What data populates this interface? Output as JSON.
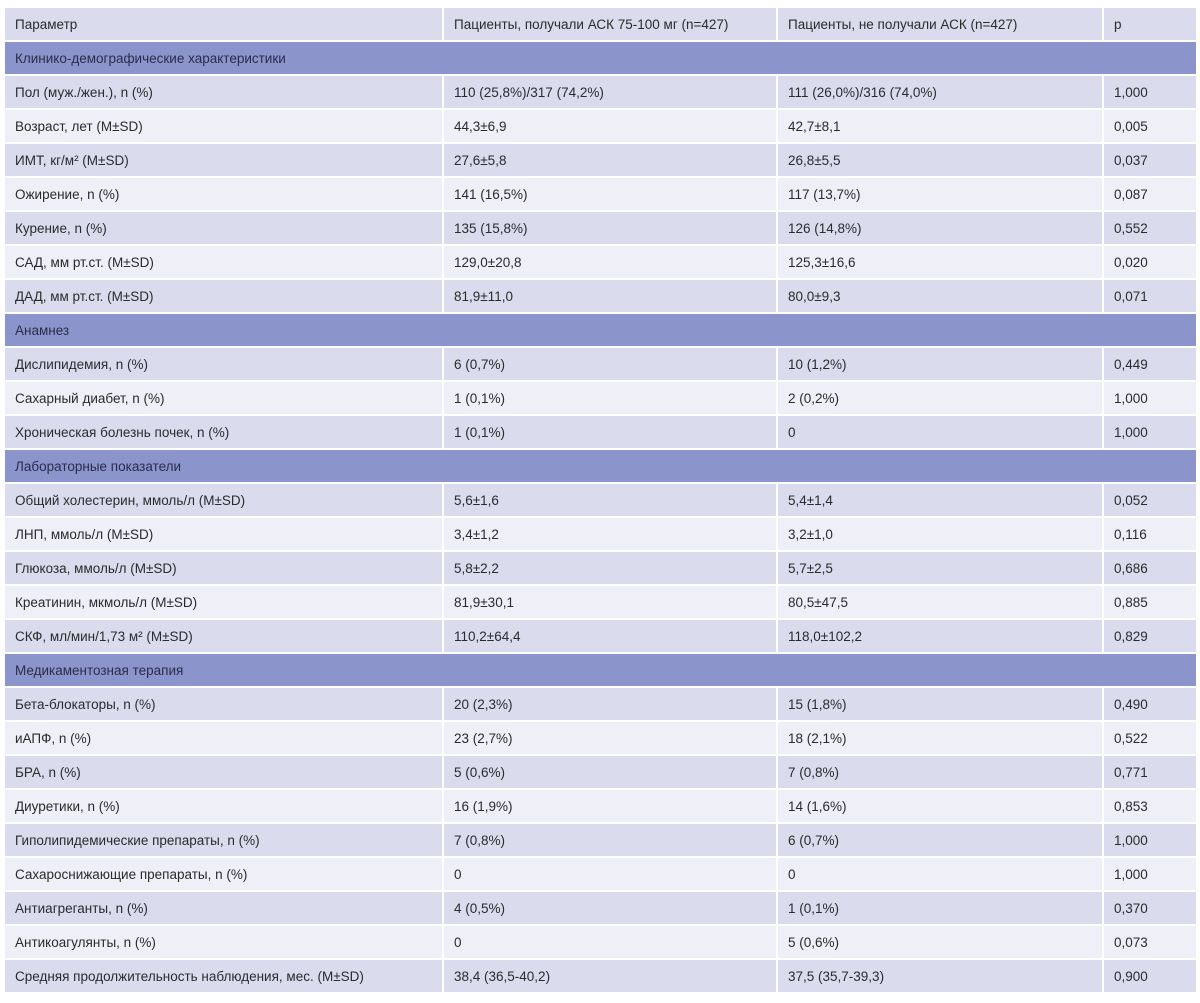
{
  "table": {
    "columns": [
      "Параметр",
      "Пациенты, получали АСК 75-100 мг (n=427)",
      "Пациенты, не получали АСК (n=427)",
      "p"
    ],
    "rows": [
      {
        "type": "section",
        "label": "Клинико-демографические характеристики"
      },
      {
        "type": "data",
        "cells": [
          "Пол (муж./жен.), n (%)",
          "110 (25,8%)/317 (74,2%)",
          "111 (26,0%)/316 (74,0%)",
          "1,000"
        ]
      },
      {
        "type": "data",
        "cells": [
          "Возраст, лет (M±SD)",
          "44,3±6,9",
          "42,7±8,1",
          "0,005"
        ]
      },
      {
        "type": "data",
        "cells": [
          "ИМТ, кг/м² (M±SD)",
          "27,6±5,8",
          "26,8±5,5",
          "0,037"
        ]
      },
      {
        "type": "data",
        "cells": [
          "Ожирение, n (%)",
          "141 (16,5%)",
          "117 (13,7%)",
          "0,087"
        ]
      },
      {
        "type": "data",
        "cells": [
          "Курение, n (%)",
          "135 (15,8%)",
          "126 (14,8%)",
          "0,552"
        ]
      },
      {
        "type": "data",
        "cells": [
          "САД, мм рт.ст. (M±SD)",
          "129,0±20,8",
          "125,3±16,6",
          "0,020"
        ]
      },
      {
        "type": "data",
        "cells": [
          "ДАД, мм рт.ст. (M±SD)",
          "81,9±11,0",
          "80,0±9,3",
          "0,071"
        ]
      },
      {
        "type": "section",
        "label": "Анамнез"
      },
      {
        "type": "data",
        "cells": [
          "Дислипидемия, n (%)",
          "6 (0,7%)",
          "10 (1,2%)",
          "0,449"
        ]
      },
      {
        "type": "data",
        "cells": [
          "Сахарный диабет, n (%)",
          "1 (0,1%)",
          "2 (0,2%)",
          "1,000"
        ]
      },
      {
        "type": "data",
        "cells": [
          "Хроническая болезнь почек, n (%)",
          "1 (0,1%)",
          "0",
          "1,000"
        ]
      },
      {
        "type": "section",
        "label": "Лабораторные показатели"
      },
      {
        "type": "data",
        "cells": [
          "Общий холестерин, ммоль/л (M±SD)",
          "5,6±1,6",
          "5,4±1,4",
          "0,052"
        ]
      },
      {
        "type": "data",
        "cells": [
          "ЛНП, ммоль/л (M±SD)",
          "3,4±1,2",
          "3,2±1,0",
          "0,116"
        ]
      },
      {
        "type": "data",
        "cells": [
          "Глюкоза, ммоль/л (M±SD)",
          "5,8±2,2",
          "5,7±2,5",
          "0,686"
        ]
      },
      {
        "type": "data",
        "cells": [
          "Креатинин, мкмоль/л (M±SD)",
          "81,9±30,1",
          "80,5±47,5",
          "0,885"
        ]
      },
      {
        "type": "data",
        "cells": [
          "СКФ, мл/мин/1,73 м² (M±SD)",
          "110,2±64,4",
          "118,0±102,2",
          "0,829"
        ]
      },
      {
        "type": "section",
        "label": "Медикаментозная терапия"
      },
      {
        "type": "data",
        "cells": [
          "Бета-блокаторы, n (%)",
          "20 (2,3%)",
          "15 (1,8%)",
          "0,490"
        ]
      },
      {
        "type": "data",
        "cells": [
          "иАПФ, n (%)",
          "23 (2,7%)",
          "18 (2,1%)",
          "0,522"
        ]
      },
      {
        "type": "data",
        "cells": [
          "БРА, n (%)",
          "5 (0,6%)",
          "7 (0,8%)",
          "0,771"
        ]
      },
      {
        "type": "data",
        "cells": [
          "Диуретики, n (%)",
          "16 (1,9%)",
          "14 (1,6%)",
          "0,853"
        ]
      },
      {
        "type": "data",
        "cells": [
          "Гиполипидемические препараты, n (%)",
          "7 (0,8%)",
          "6 (0,7%)",
          "1,000"
        ]
      },
      {
        "type": "data",
        "cells": [
          "Сахароснижающие препараты, n (%)",
          "0",
          "0",
          "1,000"
        ]
      },
      {
        "type": "data",
        "cells": [
          "Антиагреганты, n (%)",
          "4 (0,5%)",
          "1 (0,1%)",
          "0,370"
        ]
      },
      {
        "type": "data",
        "cells": [
          "Антикоагулянты, n (%)",
          "0",
          "5 (0,6%)",
          "0,073"
        ]
      },
      {
        "type": "data",
        "cells": [
          "Средняя продолжительность наблюдения, мес. (M±SD)",
          "38,4 (36,5-40,2)",
          "37,5 (35,7-39,3)",
          "0,900"
        ]
      }
    ]
  }
}
